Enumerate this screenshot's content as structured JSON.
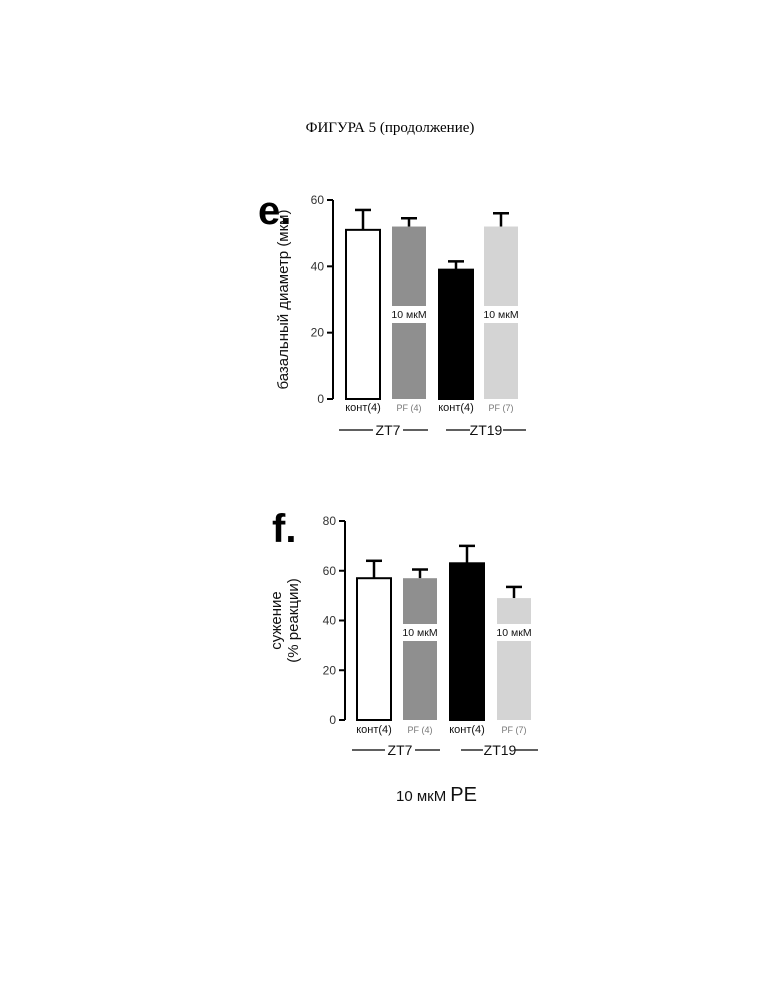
{
  "figure": {
    "title": "ФИГУРА 5 (продолжение)",
    "footer_prefix": "10 мкМ",
    "footer_suffix": "PE"
  },
  "colors": {
    "bar_outline": "#000000",
    "kont_zt7": "#ffffff",
    "pf_zt7": "#8f8f8f",
    "kont_zt19": "#000000",
    "pf_zt19": "#d4d4d4"
  },
  "chart_data": [
    {
      "type": "bar",
      "panel": "e.",
      "ylabel": "базальный диаметр (мкм)",
      "ylim": [
        0,
        60
      ],
      "yticks": [
        "0",
        "20",
        "40",
        "60"
      ],
      "categories": [
        "конт(4)",
        "PF (4)",
        "конт(4)",
        "PF (7)"
      ],
      "values": [
        51,
        52,
        39,
        52
      ],
      "errors": [
        6,
        2.5,
        2.5,
        4
      ],
      "bar_labels": [
        "",
        "10 мкМ",
        "",
        "10 мкМ"
      ],
      "groups": [
        "ZT7",
        "ZT19"
      ]
    },
    {
      "type": "bar",
      "panel": "f.",
      "ylabel_lines": [
        "сужение",
        "(% реакции)"
      ],
      "ylim": [
        0,
        80
      ],
      "yticks": [
        "0",
        "20",
        "40",
        "60",
        "80"
      ],
      "categories": [
        "конт(4)",
        "PF (4)",
        "конт(4)",
        "PF (7)"
      ],
      "values": [
        57,
        57,
        63,
        49
      ],
      "errors": [
        7,
        3.5,
        7,
        4.5
      ],
      "bar_labels": [
        "",
        "10 мкМ",
        "",
        "10 мкМ"
      ],
      "groups": [
        "ZT7",
        "ZT19"
      ]
    }
  ]
}
